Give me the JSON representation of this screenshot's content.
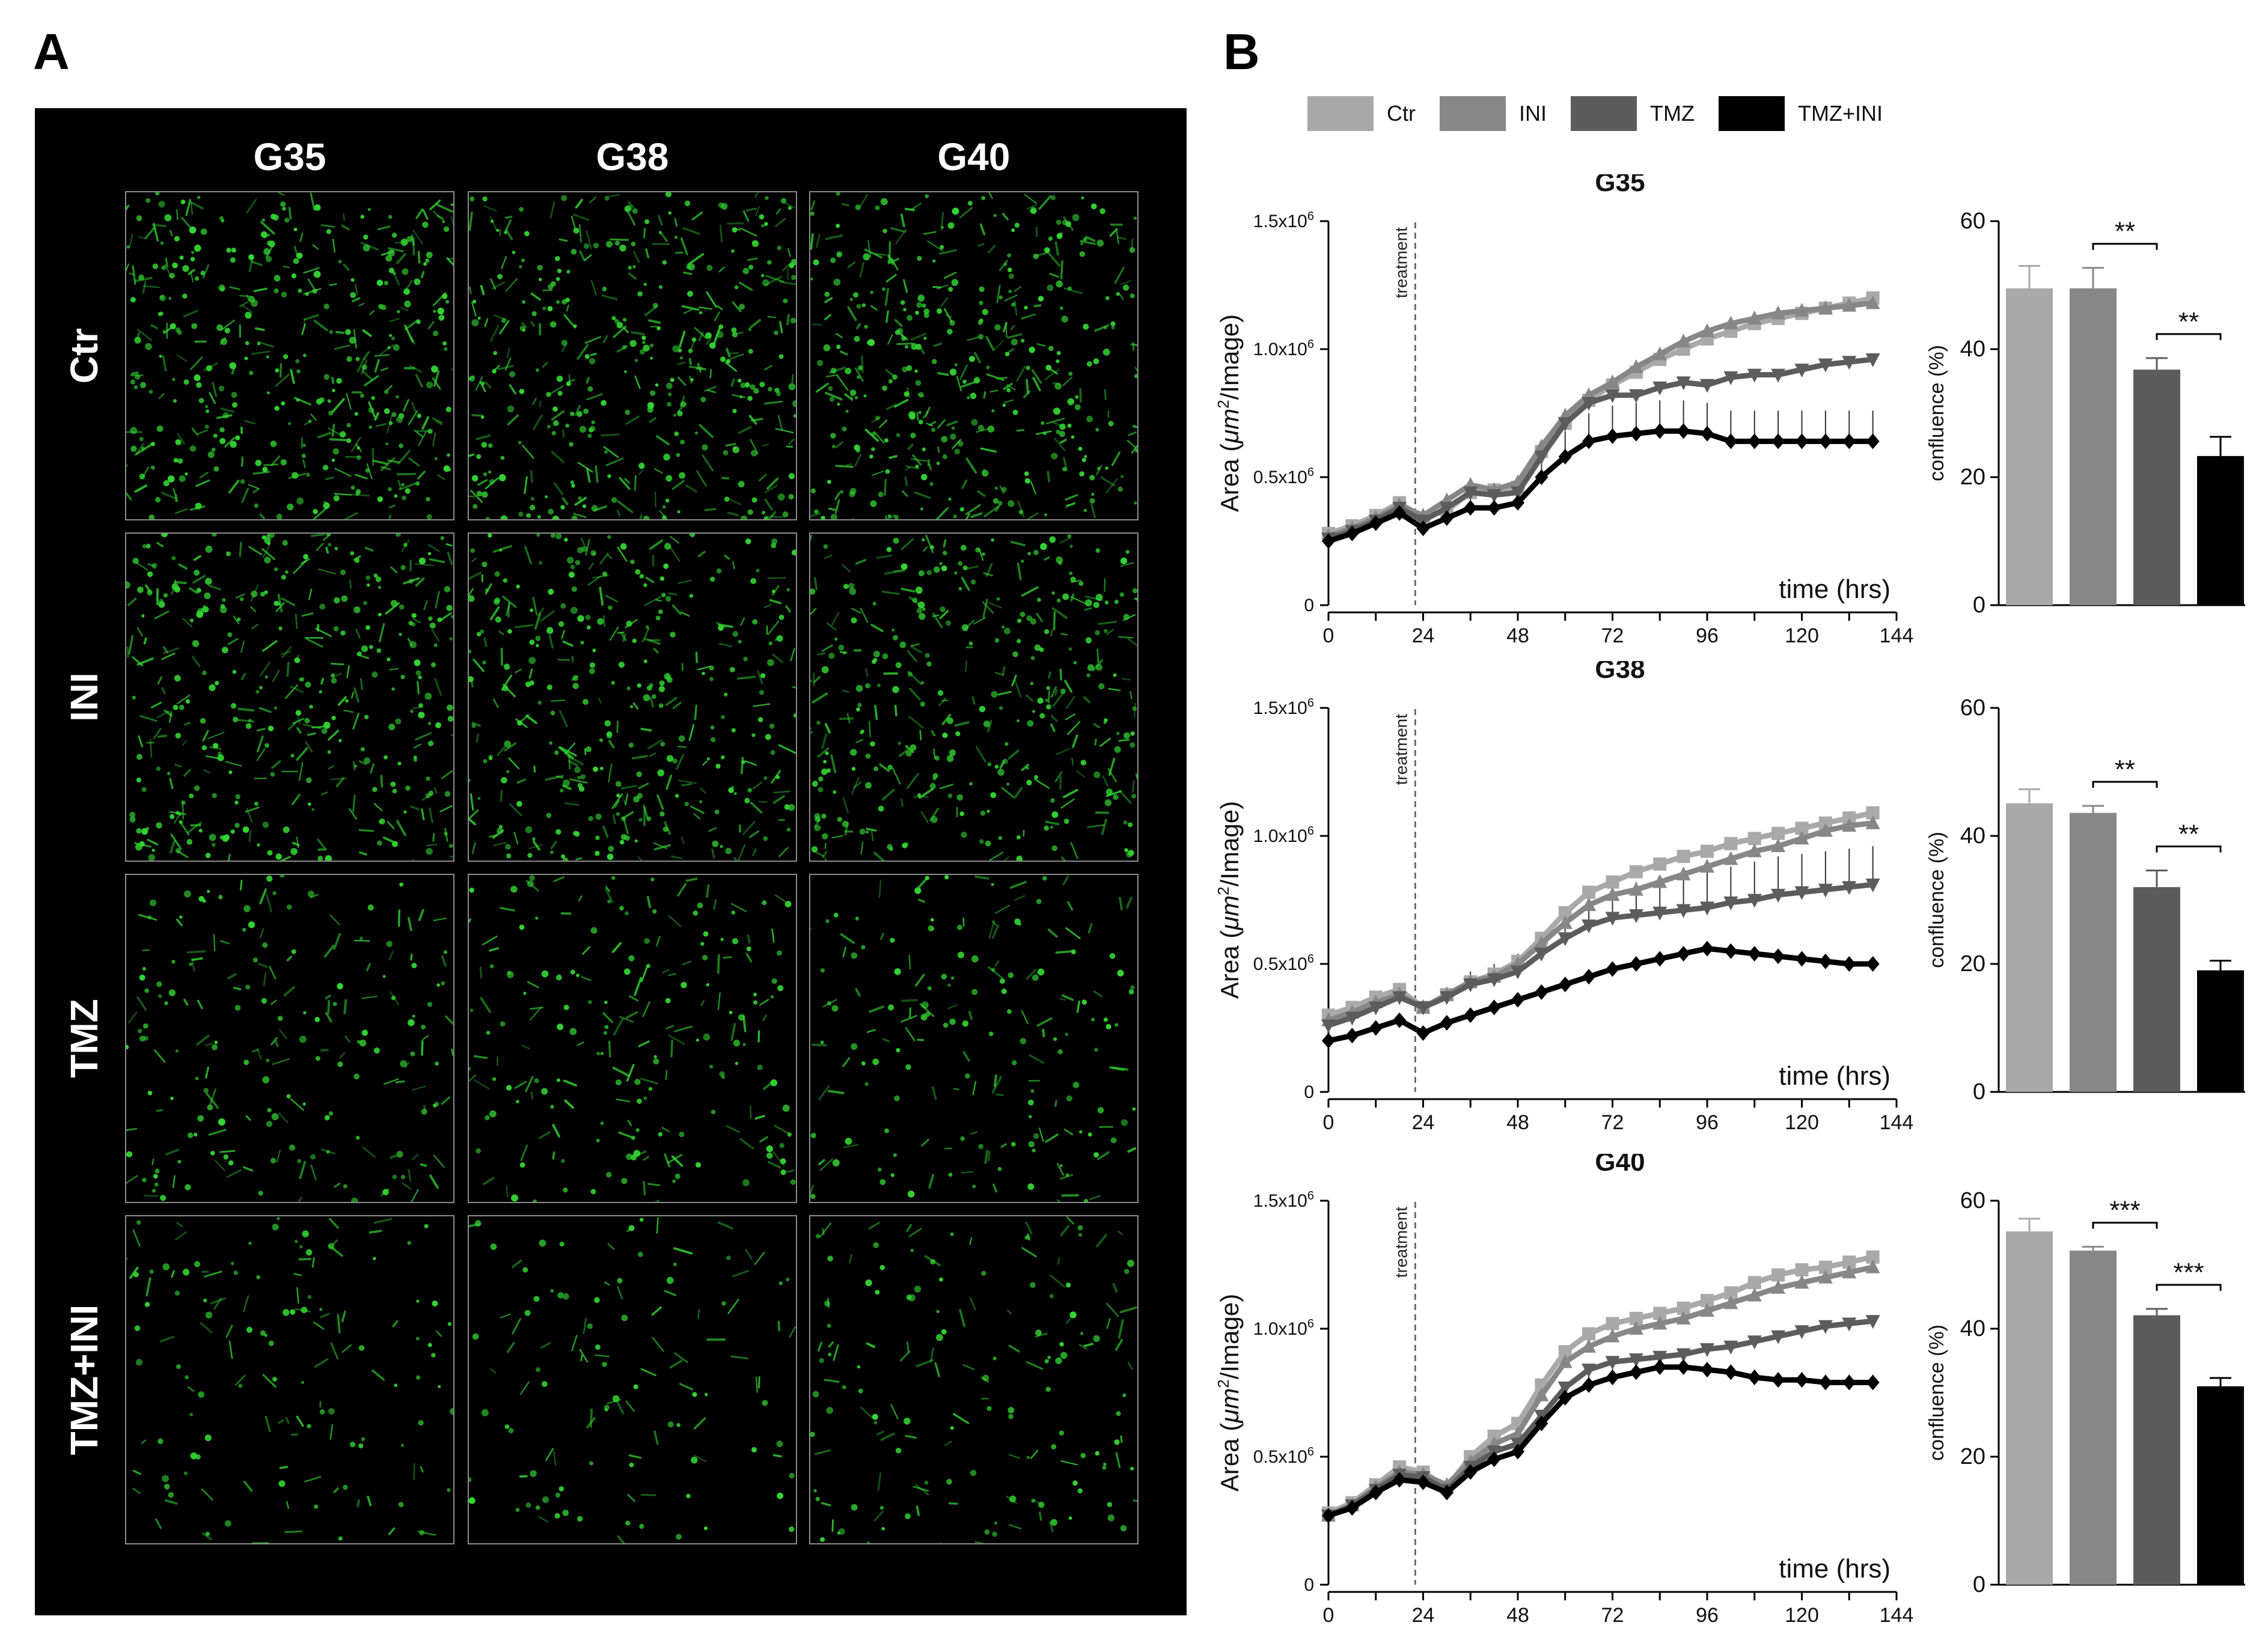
{
  "panel_a_letter": "A",
  "panel_b_letter": "B",
  "micrographs": {
    "columns": [
      "G35",
      "G38",
      "G40"
    ],
    "rows": [
      "Ctr",
      "INI",
      "TMZ",
      "TMZ+INI"
    ],
    "cell_color": "#33d633",
    "density": [
      [
        1.0,
        0.95,
        0.95
      ],
      [
        0.9,
        0.85,
        0.85
      ],
      [
        0.45,
        0.45,
        0.4
      ],
      [
        0.3,
        0.25,
        0.35
      ]
    ]
  },
  "legend": {
    "items": [
      {
        "label": "Ctr",
        "color": "#a9a9a9"
      },
      {
        "label": "INI",
        "color": "#878787"
      },
      {
        "label": "TMZ",
        "color": "#5c5c5c"
      },
      {
        "label": "TMZ+INI",
        "color": "#000000"
      }
    ]
  },
  "chart_data": [
    {
      "type": "line",
      "title": "G35",
      "xlabel": "time (hrs)",
      "ylabel": "Area (μm²/Image)",
      "ylabel_parts": {
        "pre": "Area (",
        "mu": "μm",
        "sup": "2",
        "post": "/Image)"
      },
      "x_ticks": [
        "0",
        "24",
        "48",
        "72",
        "96",
        "120",
        "144"
      ],
      "y_ticks": [
        {
          "base": "0",
          "exp": ""
        },
        {
          "base": "0.5x10",
          "exp": "6"
        },
        {
          "base": "1.0x10",
          "exp": "6"
        },
        {
          "base": "1.5x10",
          "exp": "6"
        }
      ],
      "xlim": [
        0,
        144
      ],
      "ylim": [
        0,
        1.5
      ],
      "annotation": {
        "text": "treatment",
        "x": 22
      },
      "x": [
        0,
        6,
        12,
        18,
        24,
        30,
        36,
        42,
        48,
        54,
        60,
        66,
        72,
        78,
        84,
        90,
        96,
        102,
        108,
        114,
        120,
        126,
        132,
        138
      ],
      "series": [
        {
          "name": "Ctr",
          "values": [
            0.28,
            0.31,
            0.35,
            0.4,
            0.34,
            0.37,
            0.44,
            0.45,
            0.46,
            0.6,
            0.71,
            0.8,
            0.86,
            0.91,
            0.96,
            1.0,
            1.04,
            1.07,
            1.1,
            1.12,
            1.14,
            1.16,
            1.18,
            1.2
          ]
        },
        {
          "name": "INI",
          "values": [
            0.27,
            0.3,
            0.34,
            0.39,
            0.35,
            0.41,
            0.47,
            0.45,
            0.48,
            0.62,
            0.74,
            0.82,
            0.87,
            0.93,
            0.98,
            1.03,
            1.07,
            1.1,
            1.12,
            1.14,
            1.15,
            1.16,
            1.17,
            1.18
          ]
        },
        {
          "name": "TMZ",
          "values": [
            0.26,
            0.29,
            0.33,
            0.38,
            0.33,
            0.38,
            0.44,
            0.43,
            0.44,
            0.58,
            0.71,
            0.79,
            0.82,
            0.82,
            0.85,
            0.87,
            0.86,
            0.89,
            0.9,
            0.9,
            0.92,
            0.94,
            0.95,
            0.96
          ]
        },
        {
          "name": "TMZ+INI",
          "values": [
            0.25,
            0.28,
            0.32,
            0.36,
            0.3,
            0.34,
            0.38,
            0.38,
            0.4,
            0.5,
            0.58,
            0.64,
            0.66,
            0.67,
            0.68,
            0.68,
            0.67,
            0.64,
            0.64,
            0.64,
            0.64,
            0.64,
            0.64,
            0.64
          ]
        }
      ],
      "error_series": [
        {
          "name": "TMZ+INI",
          "values": [
            0.03,
            0.03,
            0.03,
            0.03,
            0.04,
            0.05,
            0.06,
            0.06,
            0.06,
            0.08,
            0.1,
            0.11,
            0.12,
            0.12,
            0.12,
            0.12,
            0.12,
            0.12,
            0.12,
            0.12,
            0.12,
            0.12,
            0.12,
            0.12
          ]
        }
      ],
      "bars": {
        "ylabel": "confluence (%)",
        "ylim": [
          0,
          60
        ],
        "y_ticks": [
          "0",
          "20",
          "40",
          "60"
        ],
        "categories": [
          "Ctr",
          "INI",
          "TMZ",
          "TMZ+INI"
        ],
        "values": [
          49.5,
          49.5,
          36.8,
          23.3
        ],
        "errors": [
          3.5,
          3.2,
          1.8,
          3.0
        ],
        "significance": [
          {
            "from": 1,
            "to": 2,
            "label": "**"
          },
          {
            "from": 2,
            "to": 3,
            "label": "**"
          }
        ]
      }
    },
    {
      "type": "line",
      "title": "G38",
      "xlabel": "time (hrs)",
      "ylabel": "Area (μm²/Image)",
      "ylabel_parts": {
        "pre": "Area (",
        "mu": "μm",
        "sup": "2",
        "post": "/Image)"
      },
      "x_ticks": [
        "0",
        "24",
        "48",
        "72",
        "96",
        "120",
        "144"
      ],
      "y_ticks": [
        {
          "base": "0",
          "exp": ""
        },
        {
          "base": "0.5x10",
          "exp": "6"
        },
        {
          "base": "1.0x10",
          "exp": "6"
        },
        {
          "base": "1.5x10",
          "exp": "6"
        }
      ],
      "xlim": [
        0,
        144
      ],
      "ylim": [
        0,
        1.5
      ],
      "annotation": {
        "text": "treatment",
        "x": 22
      },
      "x": [
        0,
        6,
        12,
        18,
        24,
        30,
        36,
        42,
        48,
        54,
        60,
        66,
        72,
        78,
        84,
        90,
        96,
        102,
        108,
        114,
        120,
        126,
        132,
        138
      ],
      "series": [
        {
          "name": "Ctr",
          "values": [
            0.3,
            0.33,
            0.37,
            0.4,
            0.33,
            0.38,
            0.43,
            0.46,
            0.51,
            0.6,
            0.7,
            0.78,
            0.82,
            0.86,
            0.89,
            0.92,
            0.94,
            0.97,
            0.99,
            1.01,
            1.03,
            1.05,
            1.07,
            1.09
          ]
        },
        {
          "name": "INI",
          "values": [
            0.28,
            0.31,
            0.35,
            0.38,
            0.33,
            0.38,
            0.43,
            0.45,
            0.5,
            0.58,
            0.66,
            0.73,
            0.77,
            0.79,
            0.82,
            0.85,
            0.88,
            0.91,
            0.94,
            0.96,
            0.99,
            1.02,
            1.04,
            1.05
          ]
        },
        {
          "name": "TMZ",
          "values": [
            0.26,
            0.29,
            0.33,
            0.37,
            0.33,
            0.37,
            0.42,
            0.44,
            0.47,
            0.54,
            0.6,
            0.65,
            0.68,
            0.69,
            0.7,
            0.71,
            0.72,
            0.74,
            0.75,
            0.77,
            0.78,
            0.79,
            0.8,
            0.81
          ]
        },
        {
          "name": "TMZ+INI",
          "values": [
            0.2,
            0.22,
            0.25,
            0.28,
            0.23,
            0.27,
            0.3,
            0.33,
            0.36,
            0.39,
            0.42,
            0.45,
            0.48,
            0.5,
            0.52,
            0.54,
            0.56,
            0.55,
            0.54,
            0.53,
            0.52,
            0.51,
            0.5,
            0.5
          ]
        }
      ],
      "error_series": [
        {
          "name": "TMZ",
          "values": [
            0.03,
            0.03,
            0.03,
            0.03,
            0.03,
            0.04,
            0.05,
            0.06,
            0.07,
            0.08,
            0.1,
            0.11,
            0.12,
            0.13,
            0.13,
            0.13,
            0.14,
            0.14,
            0.15,
            0.15,
            0.15,
            0.15,
            0.15,
            0.15
          ]
        }
      ],
      "bars": {
        "ylabel": "confluence (%)",
        "ylim": [
          0,
          60
        ],
        "y_ticks": [
          "0",
          "20",
          "40",
          "60"
        ],
        "categories": [
          "Ctr",
          "INI",
          "TMZ",
          "TMZ+INI"
        ],
        "values": [
          45.1,
          43.6,
          32.0,
          19.0
        ],
        "errors": [
          2.2,
          1.1,
          2.6,
          1.5
        ],
        "significance": [
          {
            "from": 1,
            "to": 2,
            "label": "**"
          },
          {
            "from": 2,
            "to": 3,
            "label": "**"
          }
        ]
      }
    },
    {
      "type": "line",
      "title": "G40",
      "xlabel": "time (hrs)",
      "ylabel": "Area (μm²/Image)",
      "ylabel_parts": {
        "pre": "Area (",
        "mu": "μm",
        "sup": "2",
        "post": "/Image)"
      },
      "x_ticks": [
        "0",
        "24",
        "48",
        "72",
        "96",
        "120",
        "144"
      ],
      "y_ticks": [
        {
          "base": "0",
          "exp": ""
        },
        {
          "base": "0.5x10",
          "exp": "6"
        },
        {
          "base": "1.0x10",
          "exp": "6"
        },
        {
          "base": "1.5x10",
          "exp": "6"
        }
      ],
      "xlim": [
        0,
        144
      ],
      "ylim": [
        0,
        1.5
      ],
      "annotation": {
        "text": "treatment",
        "x": 22
      },
      "x": [
        0,
        6,
        12,
        18,
        24,
        30,
        36,
        42,
        48,
        54,
        60,
        66,
        72,
        78,
        84,
        90,
        96,
        102,
        108,
        114,
        120,
        126,
        132,
        138
      ],
      "series": [
        {
          "name": "Ctr",
          "values": [
            0.28,
            0.32,
            0.39,
            0.46,
            0.44,
            0.38,
            0.5,
            0.58,
            0.63,
            0.78,
            0.91,
            0.98,
            1.02,
            1.04,
            1.06,
            1.08,
            1.11,
            1.14,
            1.18,
            1.21,
            1.23,
            1.24,
            1.26,
            1.28
          ]
        },
        {
          "name": "INI",
          "values": [
            0.27,
            0.31,
            0.38,
            0.44,
            0.43,
            0.39,
            0.48,
            0.55,
            0.59,
            0.74,
            0.87,
            0.93,
            0.97,
            1.0,
            1.02,
            1.04,
            1.07,
            1.1,
            1.13,
            1.16,
            1.18,
            1.2,
            1.22,
            1.24
          ]
        },
        {
          "name": "TMZ",
          "values": [
            0.27,
            0.31,
            0.37,
            0.43,
            0.42,
            0.37,
            0.46,
            0.52,
            0.55,
            0.66,
            0.77,
            0.84,
            0.87,
            0.88,
            0.89,
            0.9,
            0.92,
            0.93,
            0.95,
            0.97,
            0.99,
            1.01,
            1.02,
            1.03
          ]
        },
        {
          "name": "TMZ+INI",
          "values": [
            0.27,
            0.3,
            0.36,
            0.41,
            0.4,
            0.36,
            0.44,
            0.49,
            0.52,
            0.63,
            0.73,
            0.78,
            0.81,
            0.83,
            0.85,
            0.85,
            0.84,
            0.83,
            0.81,
            0.8,
            0.8,
            0.79,
            0.79,
            0.79
          ]
        }
      ],
      "error_series": [
        {
          "name": "TMZ+INI",
          "values": [
            0.02,
            0.02,
            0.03,
            0.03,
            0.03,
            0.03,
            0.04,
            0.04,
            0.05,
            0.05,
            0.05,
            0.05,
            0.04,
            0.04,
            0.04,
            0.04,
            0.03,
            0.03,
            0.03,
            0.03,
            0.03,
            0.03,
            0.03,
            0.03
          ]
        }
      ],
      "bars": {
        "ylabel": "confluence (%)",
        "ylim": [
          0,
          60
        ],
        "y_ticks": [
          "0",
          "20",
          "40",
          "60"
        ],
        "categories": [
          "Ctr",
          "INI",
          "TMZ",
          "TMZ+INI"
        ],
        "values": [
          55.2,
          52.2,
          42.1,
          31.0
        ],
        "errors": [
          2.0,
          0.6,
          1.0,
          1.3
        ],
        "significance": [
          {
            "from": 1,
            "to": 2,
            "label": "***"
          },
          {
            "from": 2,
            "to": 3,
            "label": "***"
          }
        ]
      }
    }
  ]
}
